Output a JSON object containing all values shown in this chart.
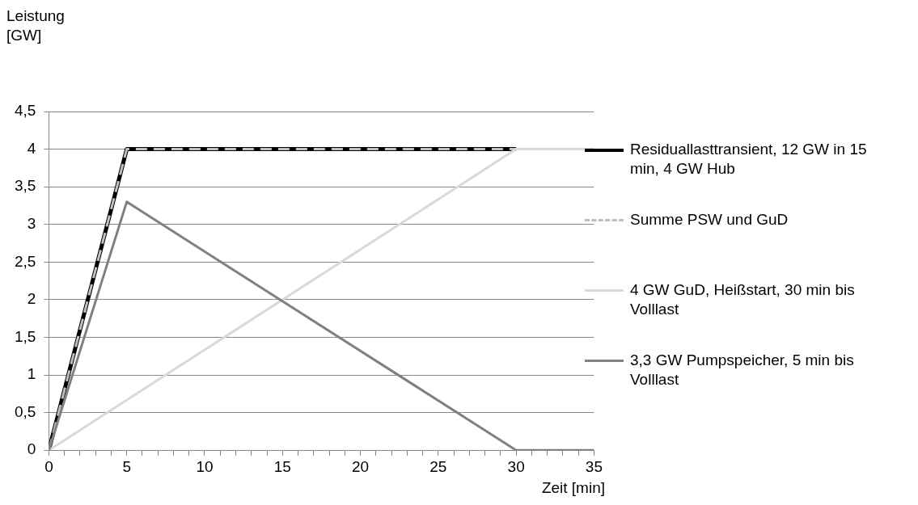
{
  "chart_data": {
    "type": "line",
    "xlabel": "Zeit [min]",
    "ylabel": "Leistung [GW]",
    "xlim": [
      0,
      35
    ],
    "ylim": [
      0,
      4.5
    ],
    "xticks": [
      0,
      {
        "value": 1,
        "label": null
      },
      {
        "value": 2,
        "label": null
      },
      {
        "value": 3,
        "label": null
      },
      {
        "value": 4,
        "label": null
      },
      5,
      {
        "value": 6,
        "label": null
      },
      {
        "value": 7,
        "label": null
      },
      {
        "value": 8,
        "label": null
      },
      {
        "value": 9,
        "label": null
      },
      10,
      {
        "value": 11,
        "label": null
      },
      {
        "value": 12,
        "label": null
      },
      {
        "value": 13,
        "label": null
      },
      {
        "value": 14,
        "label": null
      },
      15,
      {
        "value": 16,
        "label": null
      },
      {
        "value": 17,
        "label": null
      },
      {
        "value": 18,
        "label": null
      },
      {
        "value": 19,
        "label": null
      },
      20,
      {
        "value": 21,
        "label": null
      },
      {
        "value": 22,
        "label": null
      },
      {
        "value": 23,
        "label": null
      },
      {
        "value": 24,
        "label": null
      },
      25,
      {
        "value": 26,
        "label": null
      },
      {
        "value": 27,
        "label": null
      },
      {
        "value": 28,
        "label": null
      },
      {
        "value": 29,
        "label": null
      },
      30,
      {
        "value": 31,
        "label": null
      },
      {
        "value": 32,
        "label": null
      },
      {
        "value": 33,
        "label": null
      },
      {
        "value": 34,
        "label": null
      },
      35
    ],
    "yticks": [
      0,
      {
        "value": 0.5,
        "label": "0,5"
      },
      1,
      {
        "value": 1.5,
        "label": "1,5"
      },
      2,
      {
        "value": 2.5,
        "label": "2,5"
      },
      3,
      {
        "value": 3.5,
        "label": "3,5"
      },
      4,
      {
        "value": 4.5,
        "label": "4,5"
      }
    ],
    "grid": "y",
    "legend": "right",
    "marker": "none",
    "series": [
      {
        "name": "Residuallasttransient, 12 GW in 15 min, 4 GW Hub",
        "color": "#000000",
        "x": [
          0,
          5,
          30
        ],
        "values": [
          0,
          4,
          4
        ],
        "line_style": "solid"
      },
      {
        "name": "Summe PSW und GuD",
        "color": "#bfbfbf",
        "x": [
          0,
          5,
          35
        ],
        "values": [
          0,
          4,
          4
        ],
        "line_style": "dashed"
      },
      {
        "name": "4 GW GuD, Heißstart, 30 min bis Volllast",
        "color": "#d9d9d9",
        "x": [
          0,
          30,
          35
        ],
        "values": [
          0,
          4,
          4
        ],
        "line_style": "solid"
      },
      {
        "name": "3,3 GW Pumpspeicher, 5 min bis Volllast",
        "color": "#808080",
        "x": [
          0,
          5,
          30,
          35
        ],
        "values": [
          0,
          3.3,
          0,
          0
        ],
        "line_style": "solid"
      }
    ]
  }
}
